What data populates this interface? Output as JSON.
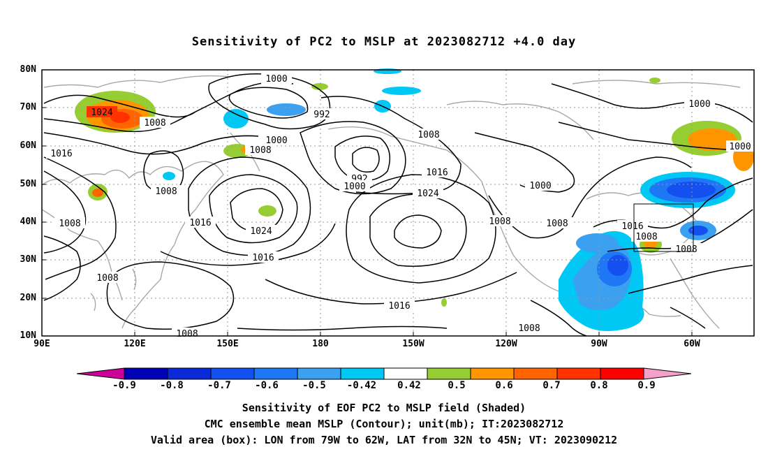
{
  "title": "Sensitivity of PC2 to MSLP at 2023082712 +4.0 day",
  "axes": {
    "lat_labels": [
      "80N",
      "70N",
      "60N",
      "50N",
      "40N",
      "30N",
      "20N",
      "10N"
    ],
    "lon_labels": [
      "90E",
      "120E",
      "150E",
      "180",
      "150W",
      "120W",
      "90W",
      "60W"
    ]
  },
  "colorbar": {
    "labels": [
      "-0.9",
      "-0.8",
      "-0.7",
      "-0.6",
      "-0.5",
      "-0.42",
      "0.42",
      "0.5",
      "0.6",
      "0.7",
      "0.8",
      "0.9"
    ],
    "colors": [
      "#cc0099",
      "#0000b4",
      "#0a2ad8",
      "#1450f0",
      "#1e78f5",
      "#3ca0f0",
      "#00c8f5",
      "#ffffff",
      "#96cd32",
      "#ff9600",
      "#ff6400",
      "#ff3200",
      "#ff0000",
      "#f5a0c8"
    ]
  },
  "contours": [
    {
      "label": "1024"
    },
    {
      "label": "1008"
    },
    {
      "label": "1016"
    },
    {
      "label": "1008"
    },
    {
      "label": "1008"
    },
    {
      "label": "1008"
    },
    {
      "label": "1000"
    },
    {
      "label": "992"
    },
    {
      "label": "1000"
    },
    {
      "label": "1008"
    },
    {
      "label": "1024"
    },
    {
      "label": "1016"
    },
    {
      "label": "1016"
    },
    {
      "label": "992"
    },
    {
      "label": "1000"
    },
    {
      "label": "1008"
    },
    {
      "label": "1016"
    },
    {
      "label": "1024"
    },
    {
      "label": "1008"
    },
    {
      "label": "1008"
    },
    {
      "label": "1000"
    },
    {
      "label": "1016"
    },
    {
      "label": "1016"
    },
    {
      "label": "1008"
    },
    {
      "label": "1008"
    },
    {
      "label": "1000"
    },
    {
      "label": "1000"
    },
    {
      "label": "1008"
    }
  ],
  "captions": [
    "Sensitivity of EOF PC2 to MSLP field (Shaded)",
    "CMC ensemble mean MSLP (Contour); unit(mb); IT:2023082712",
    "Valid area (box): LON from 79W to 62W, LAT from 32N to 45N; VT: 2023090212"
  ]
}
